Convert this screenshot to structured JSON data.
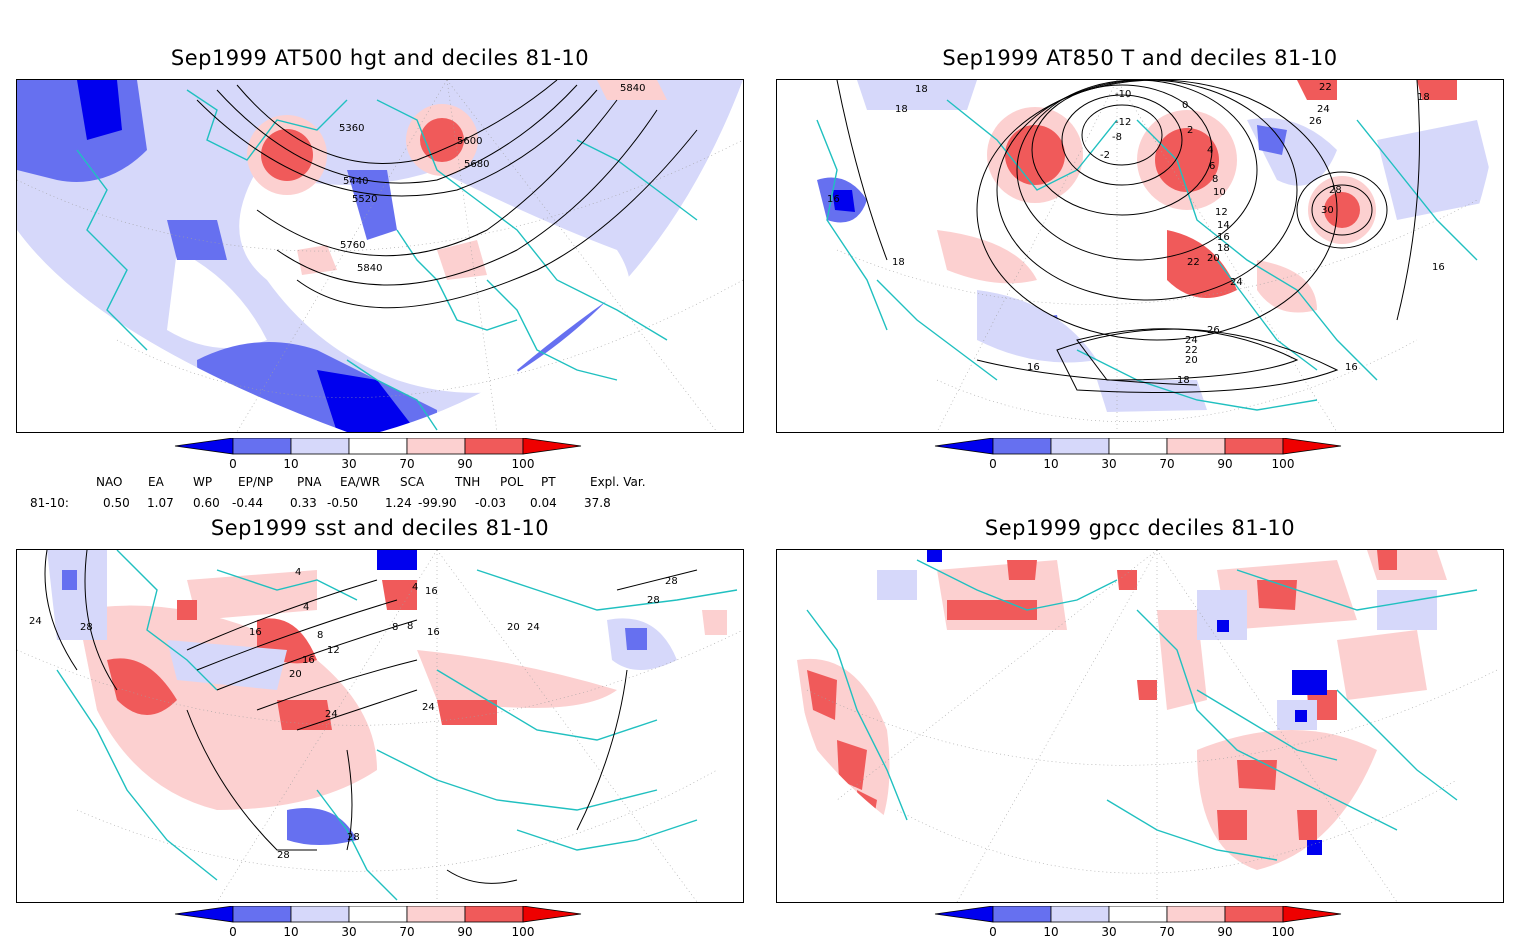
{
  "panels": [
    {
      "title": "Sep1999 AT500 hgt and deciles 81-10",
      "contour_labels": [
        "5840",
        "5360",
        "5600",
        "5680",
        "5440",
        "5520",
        "5760",
        "5840"
      ]
    },
    {
      "title": "Sep1999 AT850 T and deciles 81-10",
      "contour_labels": [
        "18",
        "18",
        "-10",
        "-12",
        "-8",
        "-2",
        "0",
        "2",
        "4",
        "6",
        "8",
        "10",
        "12",
        "14",
        "16",
        "18",
        "20",
        "22",
        "24",
        "26",
        "24",
        "22",
        "20",
        "18",
        "16",
        "16",
        "18",
        "22",
        "24",
        "26",
        "28",
        "30",
        "16",
        "18",
        "16"
      ]
    },
    {
      "title": "Sep1999 sst and deciles 81-10",
      "contour_labels": [
        "24",
        "28",
        "4",
        "8",
        "12",
        "16",
        "20",
        "24",
        "24",
        "28",
        "28",
        "28",
        "20",
        "24",
        "16",
        "8",
        "4",
        "16",
        "28",
        "16",
        "4",
        "8"
      ]
    },
    {
      "title": "Sep1999 gpcc deciles 81-10",
      "contour_labels": []
    }
  ],
  "colorbar": {
    "ticks": [
      "0",
      "10",
      "30",
      "70",
      "90",
      "100"
    ],
    "colors": [
      "#0000ee",
      "#6670f0",
      "#d6d8fa",
      "#ffffff",
      "#fcd0d0",
      "#f05a5a",
      "#ee0000"
    ]
  },
  "indices": {
    "headers": [
      "NAO",
      "EA",
      "WP",
      "EP/NP",
      "PNA",
      "EA/WR",
      "SCA",
      "TNH",
      "POL",
      "PT",
      "Expl. Var."
    ],
    "row_label": "81-10:",
    "values": [
      "0.50",
      "1.07",
      "0.60",
      "-0.44",
      "0.33",
      "-0.50",
      "1.24",
      "-99.90",
      "-0.03",
      "0.04",
      "37.8"
    ]
  },
  "map_colors": {
    "land_outline": "#20c0c0",
    "contour": "#000000",
    "grid": "#a0a0a0"
  }
}
